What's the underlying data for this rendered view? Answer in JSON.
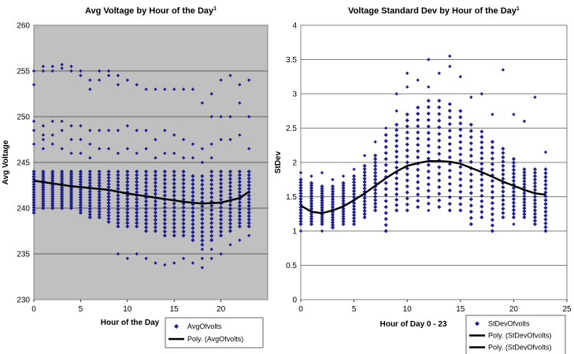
{
  "chart_data": [
    {
      "type": "scatter",
      "title": "Avg Voltage by Hour of the Day",
      "title_superscript": "1",
      "xlabel": "Hour of the Day",
      "ylabel": "Avg Voltage",
      "xlim": [
        0,
        25
      ],
      "ylim": [
        230,
        260
      ],
      "x_ticks": [
        0,
        5,
        10,
        15,
        20
      ],
      "y_ticks": [
        230,
        235,
        240,
        245,
        250,
        255,
        260
      ],
      "grid": true,
      "plot_background": "#c0c0c0",
      "marker_color": "#1f1f8f",
      "legend": {
        "placement": "bottom-right",
        "entries": [
          "AvgOfvolts",
          "Poly. (AvgOfvolts)"
        ]
      },
      "series": [
        {
          "name": "AvgOfvolts",
          "kind": "points",
          "x": [
            0,
            1,
            2,
            3,
            4,
            5,
            6,
            7,
            8,
            9,
            10,
            11,
            12,
            13,
            14,
            15,
            16,
            17,
            18,
            19,
            20,
            21,
            22,
            23
          ],
          "dense_low": [
            239.5,
            240.0,
            240.0,
            240.0,
            240.0,
            239.5,
            239.0,
            239.0,
            238.5,
            238.0,
            238.0,
            238.0,
            237.5,
            237.5,
            237.0,
            237.0,
            237.0,
            236.5,
            236.0,
            236.5,
            237.0,
            237.5,
            238.0,
            238.0
          ],
          "dense_high": [
            244.0,
            244.0,
            244.0,
            244.0,
            244.0,
            244.0,
            244.0,
            244.0,
            244.0,
            244.0,
            244.0,
            244.0,
            244.0,
            244.0,
            244.0,
            244.0,
            244.0,
            243.5,
            243.5,
            244.0,
            244.0,
            244.0,
            244.0,
            244.0
          ],
          "upper_outliers": [
            [
              0,
              255.0
            ],
            [
              0,
              253.5
            ],
            [
              0,
              249.5
            ],
            [
              0,
              248.5
            ],
            [
              0,
              247.0
            ],
            [
              1,
              255.0
            ],
            [
              1,
              255.5
            ],
            [
              1,
              249.0
            ],
            [
              1,
              248.0
            ],
            [
              1,
              247.5
            ],
            [
              1,
              246.5
            ],
            [
              2,
              255.5
            ],
            [
              2,
              255.0
            ],
            [
              2,
              249.5
            ],
            [
              2,
              248.0
            ],
            [
              2,
              247.0
            ],
            [
              3,
              255.7
            ],
            [
              3,
              255.3
            ],
            [
              3,
              249.5
            ],
            [
              3,
              248.5
            ],
            [
              3,
              246.5
            ],
            [
              4,
              255.5
            ],
            [
              4,
              255.0
            ],
            [
              4,
              249.0
            ],
            [
              4,
              247.5
            ],
            [
              4,
              246.0
            ],
            [
              5,
              255.0
            ],
            [
              5,
              254.5
            ],
            [
              5,
              249.0
            ],
            [
              5,
              247.5
            ],
            [
              5,
              246.0
            ],
            [
              6,
              254.0
            ],
            [
              6,
              253.0
            ],
            [
              6,
              248.5
            ],
            [
              6,
              247.0
            ],
            [
              6,
              245.5
            ],
            [
              7,
              255.0
            ],
            [
              7,
              254.0
            ],
            [
              7,
              248.5
            ],
            [
              7,
              246.5
            ],
            [
              8,
              255.0
            ],
            [
              8,
              254.5
            ],
            [
              8,
              248.5
            ],
            [
              8,
              246.5
            ],
            [
              9,
              254.5
            ],
            [
              9,
              253.5
            ],
            [
              9,
              248.5
            ],
            [
              9,
              246.0
            ],
            [
              10,
              254.0
            ],
            [
              10,
              249.0
            ],
            [
              10,
              246.5
            ],
            [
              11,
              253.5
            ],
            [
              11,
              248.5
            ],
            [
              11,
              246.0
            ],
            [
              12,
              253.0
            ],
            [
              12,
              248.5
            ],
            [
              12,
              246.5
            ],
            [
              13,
              253.0
            ],
            [
              13,
              247.5
            ],
            [
              13,
              245.5
            ],
            [
              14,
              253.0
            ],
            [
              14,
              248.5
            ],
            [
              14,
              246.0
            ],
            [
              15,
              253.0
            ],
            [
              15,
              248.0
            ],
            [
              15,
              246.0
            ],
            [
              16,
              253.0
            ],
            [
              16,
              247.5
            ],
            [
              16,
              245.5
            ],
            [
              17,
              253.0
            ],
            [
              17,
              247.0
            ],
            [
              17,
              245.5
            ],
            [
              18,
              251.5
            ],
            [
              18,
              246.5
            ],
            [
              18,
              245.0
            ],
            [
              19,
              252.5
            ],
            [
              19,
              250.0
            ],
            [
              19,
              247.0
            ],
            [
              19,
              245.5
            ],
            [
              20,
              254.0
            ],
            [
              20,
              250.0
            ],
            [
              20,
              247.5
            ],
            [
              21,
              254.5
            ],
            [
              21,
              250.0
            ],
            [
              21,
              247.5
            ],
            [
              22,
              253.5
            ],
            [
              22,
              251.5
            ],
            [
              22,
              248.0
            ],
            [
              23,
              254.0
            ],
            [
              23,
              250.0
            ],
            [
              23,
              246.5
            ]
          ],
          "lower_outliers": [
            [
              9,
              235.0
            ],
            [
              10,
              234.5
            ],
            [
              11,
              235.0
            ],
            [
              12,
              234.5
            ],
            [
              13,
              234.0
            ],
            [
              14,
              233.8
            ],
            [
              15,
              234.0
            ],
            [
              16,
              234.5
            ],
            [
              17,
              234.0
            ],
            [
              18,
              233.5
            ],
            [
              18,
              234.5
            ],
            [
              18,
              235.5
            ],
            [
              19,
              234.5
            ],
            [
              19,
              235.5
            ],
            [
              20,
              235.0
            ],
            [
              21,
              236.0
            ],
            [
              22,
              236.5
            ],
            [
              23,
              237.0
            ]
          ]
        },
        {
          "name": "Poly. (AvgOfvolts)",
          "kind": "trendline",
          "x": [
            0,
            2,
            4,
            6,
            8,
            10,
            12,
            14,
            16,
            18,
            20,
            22,
            23
          ],
          "y": [
            243.0,
            242.7,
            242.4,
            242.2,
            242.0,
            241.6,
            241.3,
            241.0,
            240.7,
            240.5,
            240.6,
            241.1,
            241.8
          ]
        }
      ]
    },
    {
      "type": "scatter",
      "title": "Voltage Standard Dev by Hour of the Day",
      "title_superscript": "1",
      "xlabel": "Hour of Day 0 - 23",
      "ylabel": "StDev",
      "xlim": [
        0,
        25
      ],
      "ylim": [
        0,
        4
      ],
      "x_ticks": [
        0,
        5,
        10,
        15,
        20,
        25
      ],
      "y_ticks": [
        0,
        0.5,
        1,
        1.5,
        2,
        2.5,
        3,
        3.5,
        4
      ],
      "grid": true,
      "plot_background": "#ffffff",
      "marker_color": "#1f1f8f",
      "legend": {
        "placement": "bottom-right",
        "entries": [
          "StDevOfvolts",
          "Poly. (StDevOfvolts)",
          "Poly. (StDevOfvolts)"
        ]
      },
      "series": [
        {
          "name": "StDevOfvolts",
          "kind": "points",
          "x": [
            0,
            1,
            2,
            3,
            4,
            5,
            6,
            7,
            8,
            9,
            10,
            11,
            12,
            13,
            14,
            15,
            16,
            17,
            18,
            19,
            20,
            21,
            22,
            23
          ],
          "dense_low": [
            1.1,
            1.1,
            1.1,
            1.05,
            1.1,
            1.1,
            1.2,
            1.3,
            1.0,
            1.3,
            1.3,
            1.35,
            1.4,
            1.35,
            1.3,
            1.3,
            1.1,
            1.2,
            1.0,
            1.2,
            1.2,
            1.2,
            1.1,
            1.0
          ],
          "dense_high": [
            1.75,
            1.7,
            1.65,
            1.65,
            1.7,
            1.8,
            1.95,
            2.1,
            2.4,
            2.55,
            2.7,
            2.8,
            2.9,
            2.9,
            2.85,
            2.75,
            2.55,
            2.45,
            2.3,
            2.2,
            2.05,
            1.9,
            1.9,
            1.9
          ],
          "upper_outliers": [
            [
              0,
              1.85
            ],
            [
              1,
              1.8
            ],
            [
              2,
              1.85
            ],
            [
              3,
              1.75
            ],
            [
              4,
              1.8
            ],
            [
              5,
              1.9
            ],
            [
              6,
              2.1
            ],
            [
              7,
              2.3
            ],
            [
              8,
              2.5
            ],
            [
              9,
              2.75
            ],
            [
              9,
              3.0
            ],
            [
              10,
              3.1
            ],
            [
              10,
              3.3
            ],
            [
              11,
              3.2
            ],
            [
              12,
              3.1
            ],
            [
              12,
              3.5
            ],
            [
              13,
              3.3
            ],
            [
              14,
              3.55
            ],
            [
              14,
              3.4
            ],
            [
              15,
              3.25
            ],
            [
              16,
              2.95
            ],
            [
              17,
              3.0
            ],
            [
              18,
              2.7
            ],
            [
              19,
              3.35
            ],
            [
              20,
              2.7
            ],
            [
              21,
              2.6
            ],
            [
              22,
              2.95
            ],
            [
              23,
              2.15
            ]
          ],
          "lower_outliers": [
            [
              0,
              1.0
            ],
            [
              2,
              1.0
            ],
            [
              8,
              1.0
            ],
            [
              12,
              1.3
            ],
            [
              16,
              1.1
            ],
            [
              18,
              1.0
            ],
            [
              20,
              1.1
            ],
            [
              23,
              1.0
            ]
          ]
        },
        {
          "name": "Poly. (StDevOfvolts)",
          "kind": "trendline",
          "x": [
            0,
            1,
            2,
            3,
            4,
            5,
            6,
            7,
            8,
            9,
            10,
            11,
            12,
            13,
            14,
            15,
            16,
            17,
            18,
            19,
            20,
            21,
            22,
            23
          ],
          "y": [
            1.37,
            1.28,
            1.26,
            1.3,
            1.36,
            1.45,
            1.55,
            1.66,
            1.77,
            1.87,
            1.95,
            1.99,
            2.02,
            2.02,
            2.01,
            1.98,
            1.92,
            1.86,
            1.79,
            1.72,
            1.66,
            1.6,
            1.55,
            1.53
          ]
        }
      ]
    }
  ]
}
